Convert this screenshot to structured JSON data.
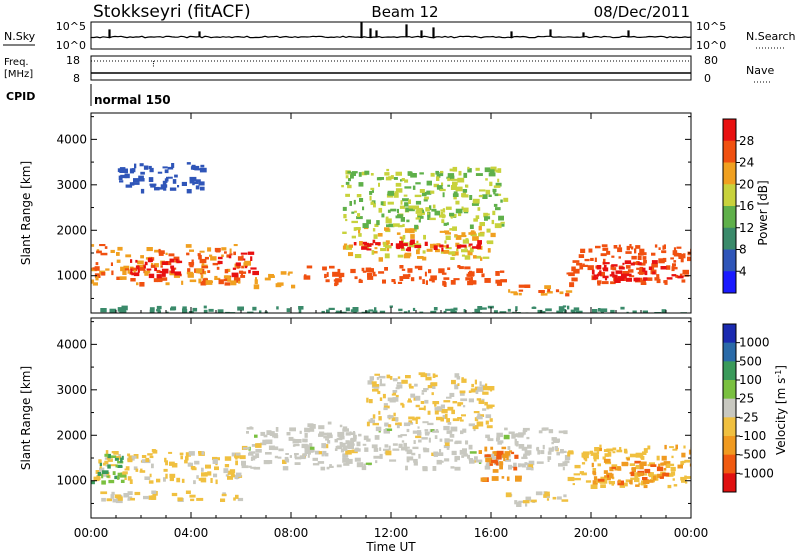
{
  "header": {
    "station": "Stokkseyri (fitACF)",
    "beam": "Beam 12",
    "date": "08/Dec/2011"
  },
  "strips": {
    "nsky": {
      "label": "N.Sky",
      "tick_top": "10^5",
      "tick_bottom": "10^0",
      "right_tick_top": "10^5",
      "right_tick_bottom": "10^0",
      "right_label": "N.Search"
    },
    "freq": {
      "label_line1": "Freq.",
      "label_line2": "[MHz]",
      "tick_top": "18",
      "tick_bottom": "8",
      "right_tick_top": "80",
      "right_tick_bottom": "0",
      "right_label": "Nave"
    },
    "cpid": {
      "label": "CPID",
      "mode": "normal 150"
    }
  },
  "colors": {
    "power_scale": [
      "#1a1aff",
      "#2f55b8",
      "#3a8a6a",
      "#5fb04a",
      "#c8d23c",
      "#f0a020",
      "#f05010",
      "#e81010"
    ],
    "velocity_scale": [
      "#e01010",
      "#f05a10",
      "#f09a20",
      "#f0c040",
      "#c8c8c0",
      "#7ac040",
      "#3a9a5a",
      "#2a6aa8",
      "#1a2ab0"
    ]
  },
  "chart_data": [
    {
      "type": "heatmap",
      "title": "",
      "xlabel": "",
      "ylabel": "Slant Range [km]",
      "x_ticks": [
        "00:00",
        "04:00",
        "08:00",
        "12:00",
        "16:00",
        "20:00",
        "00:00"
      ],
      "x_range_hours": [
        0,
        24
      ],
      "y_ticks": [
        1000,
        2000,
        3000,
        4000
      ],
      "ylim": [
        180,
        4580
      ],
      "colorbar": {
        "label": "Power [dB]",
        "ticks": [
          "4",
          "8",
          "12",
          "16",
          "20",
          "24",
          "28"
        ],
        "range": [
          0,
          32
        ]
      },
      "regions": [
        {
          "t": [
            0.0,
            6.2
          ],
          "r": [
            850,
            1700
          ],
          "value": 24
        },
        {
          "t": [
            1.5,
            3.5
          ],
          "r": [
            950,
            1400
          ],
          "value": 30
        },
        {
          "t": [
            5.0,
            6.5
          ],
          "r": [
            1050,
            1550
          ],
          "value": 28
        },
        {
          "t": [
            1.0,
            4.5
          ],
          "r": [
            2900,
            3500
          ],
          "value": 6
        },
        {
          "t": [
            6.5,
            8.0
          ],
          "r": [
            800,
            1100
          ],
          "value": 22
        },
        {
          "t": [
            8.5,
            16.5
          ],
          "r": [
            850,
            1250
          ],
          "value": 26
        },
        {
          "t": [
            10.0,
            16.0
          ],
          "r": [
            1400,
            2100
          ],
          "value": 20
        },
        {
          "t": [
            10.5,
            16.0
          ],
          "r": [
            1600,
            1800
          ],
          "value": 30
        },
        {
          "t": [
            10.0,
            16.5
          ],
          "r": [
            2100,
            3400
          ],
          "value": 16
        },
        {
          "t": [
            16.5,
            19.0
          ],
          "r": [
            600,
            850
          ],
          "value": 24
        },
        {
          "t": [
            19.0,
            24.0
          ],
          "r": [
            850,
            1700
          ],
          "value": 26
        },
        {
          "t": [
            20.0,
            23.5
          ],
          "r": [
            950,
            1350
          ],
          "value": 30
        },
        {
          "t": [
            0.0,
            24.0
          ],
          "r": [
            180,
            350
          ],
          "value": 10
        }
      ]
    },
    {
      "type": "heatmap",
      "title": "",
      "xlabel": "Time UT",
      "ylabel": "Slant Range [km]",
      "x_ticks": [
        "00:00",
        "04:00",
        "08:00",
        "12:00",
        "16:00",
        "20:00",
        "00:00"
      ],
      "x_range_hours": [
        0,
        24
      ],
      "y_ticks": [
        1000,
        2000,
        3000,
        4000
      ],
      "ylim": [
        180,
        4580
      ],
      "colorbar": {
        "label": "Velocity [m s^-1]",
        "ticks": [
          "1000",
          "500",
          "100",
          "25",
          "-25",
          "-100",
          "-500",
          "-1000"
        ],
        "range": [
          -1200,
          1200
        ]
      },
      "regions": [
        {
          "t": [
            0.0,
            6.0
          ],
          "r": [
            600,
            800
          ],
          "value": -200
        },
        {
          "t": [
            0.0,
            6.0
          ],
          "r": [
            1000,
            1700
          ],
          "value": -200
        },
        {
          "t": [
            0.0,
            1.5
          ],
          "r": [
            1000,
            1600
          ],
          "value": 400
        },
        {
          "t": [
            6.0,
            19.0
          ],
          "r": [
            1300,
            2200
          ],
          "value": 0
        },
        {
          "t": [
            8.5,
            10.5
          ],
          "r": [
            1700,
            2300
          ],
          "value": 0
        },
        {
          "t": [
            11.0,
            16.0
          ],
          "r": [
            2200,
            3400
          ],
          "value": -150
        },
        {
          "t": [
            15.5,
            17.0
          ],
          "r": [
            1000,
            1800
          ],
          "value": -600
        },
        {
          "t": [
            16.5,
            19.0
          ],
          "r": [
            500,
            800
          ],
          "value": -120
        },
        {
          "t": [
            19.0,
            24.0
          ],
          "r": [
            900,
            1800
          ],
          "value": -300
        },
        {
          "t": [
            20.0,
            23.0
          ],
          "r": [
            1000,
            1500
          ],
          "value": -600
        }
      ]
    }
  ]
}
